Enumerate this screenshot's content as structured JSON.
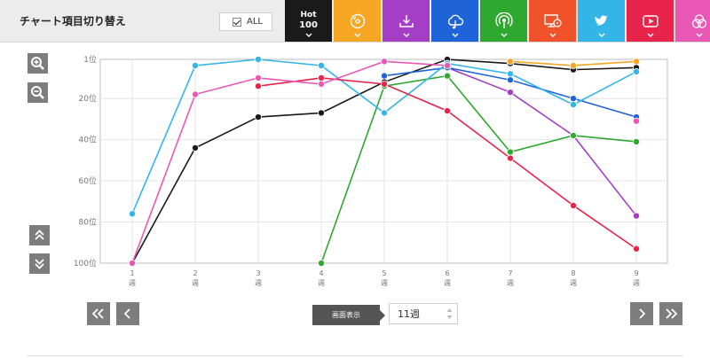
{
  "header": {
    "title": "チャート項目切り替え",
    "all_label": "ALL",
    "hot_tab_line1": "Hot",
    "hot_tab_line2": "100"
  },
  "tabs": [
    {
      "name": "hot100",
      "color": "#1a1a1a",
      "icon": "text-hot100"
    },
    {
      "name": "cd",
      "color": "#f5a623",
      "icon": "cd-icon"
    },
    {
      "name": "download",
      "color": "#a43ec4",
      "icon": "download-icon"
    },
    {
      "name": "streaming",
      "color": "#1f63d8",
      "icon": "cloud-music-icon"
    },
    {
      "name": "radio",
      "color": "#2ea82e",
      "icon": "radio-icon"
    },
    {
      "name": "video",
      "color": "#f0532a",
      "icon": "tv-icon"
    },
    {
      "name": "twitter",
      "color": "#33b5e8",
      "icon": "twitter-icon"
    },
    {
      "name": "youtube",
      "color": "#e8244a",
      "icon": "youtube-icon"
    },
    {
      "name": "lookup",
      "color": "#ea58b6",
      "icon": "circles-icon"
    }
  ],
  "controls": {
    "display_label": "画面表示",
    "week_value": "11週"
  },
  "chart_data": {
    "type": "line",
    "x": [
      1,
      2,
      3,
      4,
      5,
      6,
      7,
      8,
      9
    ],
    "x_tick_labels": [
      "1\n週",
      "2\n週",
      "3\n週",
      "4\n週",
      "5\n週",
      "6\n週",
      "7\n週",
      "8\n週",
      "9\n週"
    ],
    "y_tick_labels": [
      "1位",
      "20位",
      "40位",
      "60位",
      "80位",
      "100位"
    ],
    "y_ticks": [
      1,
      20,
      40,
      60,
      80,
      100
    ],
    "ylim": [
      1,
      100
    ],
    "y_inverted": true,
    "grid": true,
    "series": [
      {
        "color": "#1a1a1a",
        "values": [
          100,
          44,
          29,
          27,
          12,
          1,
          3,
          6,
          5
        ]
      },
      {
        "color": "#f5a623",
        "values": [
          null,
          null,
          null,
          null,
          null,
          null,
          2,
          4,
          2
        ]
      },
      {
        "color": "#a43ec4",
        "values": [
          null,
          null,
          null,
          null,
          null,
          5,
          17,
          38,
          77
        ]
      },
      {
        "color": "#1f63d8",
        "values": [
          null,
          null,
          null,
          null,
          9,
          5,
          11,
          20,
          29
        ]
      },
      {
        "color": "#2ea82e",
        "values": [
          null,
          null,
          null,
          100,
          14,
          9,
          46,
          38,
          41
        ]
      },
      {
        "color": "#33b5e8",
        "values": [
          76,
          4,
          1,
          4,
          27,
          3,
          8,
          23,
          7
        ]
      },
      {
        "color": "#e8244a",
        "values": [
          null,
          null,
          14,
          10,
          13,
          26,
          49,
          72,
          93
        ]
      },
      {
        "color": "#ea58b6",
        "values": [
          100,
          18,
          10,
          13,
          2,
          4,
          null,
          null,
          31
        ]
      }
    ]
  }
}
